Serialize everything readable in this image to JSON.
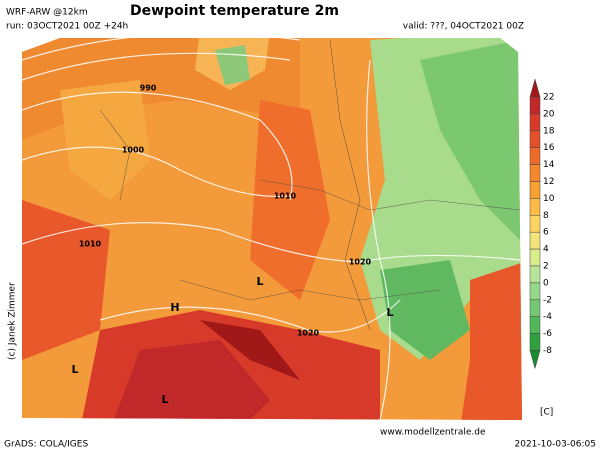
{
  "header": {
    "model": "WRF-ARW @12km",
    "run": "run: 03OCT2021 00Z +24h",
    "title": "Dewpoint temperature 2m",
    "valid": "valid: ???, 04OCT2021 00Z"
  },
  "map": {
    "labels": [
      "990",
      "1000",
      "1010",
      "1010",
      "1020",
      "1020",
      "L",
      "H",
      "L",
      "L",
      "L"
    ]
  },
  "colorbar": {
    "ticks": [
      "22",
      "20",
      "18",
      "16",
      "14",
      "12",
      "10",
      "8",
      "6",
      "4",
      "2",
      "0",
      "-2",
      "-4",
      "-6",
      "-8"
    ],
    "colors": [
      "#a01818",
      "#c0282a",
      "#d83a2a",
      "#e4502a",
      "#ee6a2a",
      "#f4862c",
      "#f8a030",
      "#fbbb46",
      "#fcd460",
      "#f2e47a",
      "#d8ec8a",
      "#b8e49a",
      "#96d88a",
      "#74c874",
      "#50b85a",
      "#30a040",
      "#1a8a30"
    ],
    "unit": "[C]"
  },
  "credit": "(c) Janek Zimmer",
  "website": "www.modellzentrale.de",
  "footer": {
    "left": "GrADS: COLA/IGES",
    "right": "2021-10-03-06:05"
  }
}
